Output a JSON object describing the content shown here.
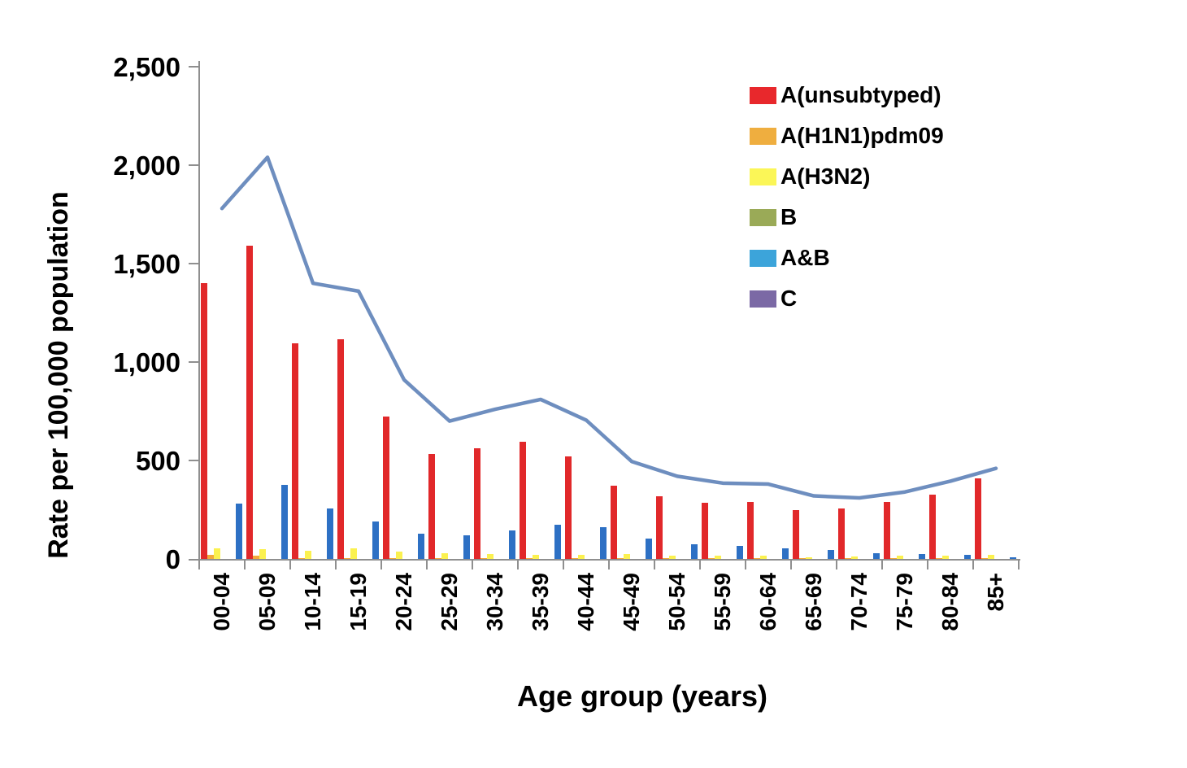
{
  "chart_data": {
    "type": "bar",
    "title": "",
    "xlabel": "Age group (years)",
    "ylabel": "Rate per 100,000 population",
    "categories": [
      "00-04",
      "05-09",
      "10-14",
      "15-19",
      "20-24",
      "25-29",
      "30-34",
      "35-39",
      "40-44",
      "45-49",
      "50-54",
      "55-59",
      "60-64",
      "65-69",
      "70-74",
      "75-79",
      "80-84",
      "85+"
    ],
    "series": [
      {
        "name": "A(unsubtyped)",
        "color": "#e1282a",
        "values": [
          1400,
          1590,
          1095,
          1115,
          725,
          535,
          560,
          595,
          520,
          370,
          320,
          285,
          290,
          250,
          255,
          290,
          325,
          410
        ]
      },
      {
        "name": "A(H1N1)pdm09",
        "color": "#f2a93c",
        "values": [
          20,
          15,
          6,
          6,
          5,
          4,
          4,
          4,
          4,
          3,
          3,
          3,
          3,
          2,
          2,
          2,
          3,
          3
        ]
      },
      {
        "name": "A(H3N2)",
        "color": "#fbf14f",
        "values": [
          55,
          48,
          40,
          55,
          38,
          30,
          25,
          22,
          20,
          25,
          18,
          15,
          15,
          10,
          12,
          15,
          15,
          20
        ]
      },
      {
        "name": "B",
        "color": "#9bab57",
        "values": [
          0,
          0,
          0,
          0,
          0,
          0,
          0,
          0,
          0,
          0,
          0,
          0,
          0,
          0,
          0,
          0,
          0,
          0
        ]
      },
      {
        "name": "A&B",
        "color": "#2d70c4",
        "values": [
          280,
          375,
          255,
          190,
          130,
          120,
          145,
          175,
          160,
          105,
          75,
          65,
          55,
          45,
          30,
          25,
          20,
          8
        ]
      },
      {
        "name": "C",
        "color": "#7b69a5",
        "values": [
          0,
          0,
          0,
          0,
          0,
          0,
          0,
          0,
          0,
          0,
          0,
          0,
          0,
          0,
          0,
          0,
          0,
          0
        ]
      }
    ],
    "line_series": {
      "color": "#6e8ebf",
      "values": [
        1780,
        2040,
        1400,
        1360,
        910,
        700,
        760,
        810,
        705,
        495,
        420,
        385,
        380,
        320,
        310,
        340,
        395,
        460
      ]
    },
    "ylim": [
      0,
      2500
    ],
    "ytick_values": [
      0,
      500,
      1000,
      1500,
      2000,
      2500
    ],
    "ytick_labels": [
      "0",
      "500",
      "1,000",
      "1,500",
      "2,000",
      "2,500"
    ],
    "legend": [
      {
        "label": "A(unsubtyped)",
        "color": "#e8282c"
      },
      {
        "label": "A(H1N1)pdm09",
        "color": "#efae3f"
      },
      {
        "label": "A(H3N2)",
        "color": "#fbf657"
      },
      {
        "label": "B",
        "color": "#9aaa57"
      },
      {
        "label": "A&B",
        "color": "#3ca4da"
      },
      {
        "label": "C",
        "color": "#7b69a5"
      }
    ],
    "legend_position": "top-right",
    "grid": false
  }
}
